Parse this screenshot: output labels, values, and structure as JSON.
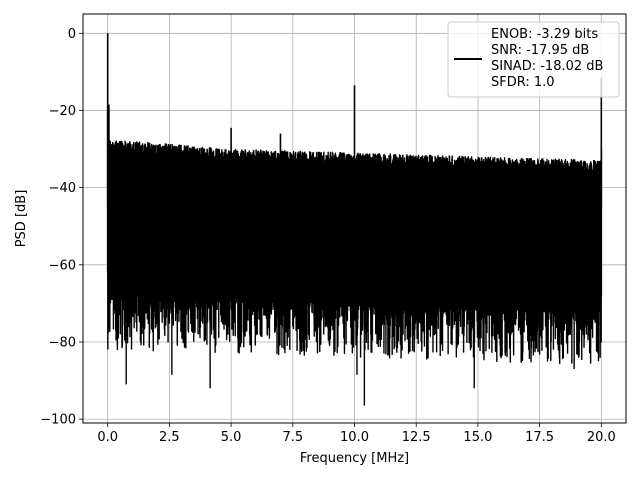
{
  "chart_data": {
    "type": "line",
    "title": "",
    "xlabel": "Frequency [MHz]",
    "ylabel": "PSD [dB]",
    "xlim": [
      -1.0,
      21.0
    ],
    "ylim": [
      -101.0,
      5.0
    ],
    "xticks": [
      0.0,
      2.5,
      5.0,
      7.5,
      10.0,
      12.5,
      15.0,
      17.5,
      20.0
    ],
    "xtick_labels": [
      "0.0",
      "2.5",
      "5.0",
      "7.5",
      "10.0",
      "12.5",
      "15.0",
      "17.5",
      "20.0"
    ],
    "yticks": [
      0,
      -20,
      -40,
      -60,
      -80,
      -100
    ],
    "ytick_labels": [
      "0",
      "−20",
      "−40",
      "−60",
      "−80",
      "−100"
    ],
    "grid": true,
    "legend_position": "top-right",
    "legend_entries": [
      "ENOB: -3.29 bits",
      "SNR: -17.95 dB",
      "SINAD: -18.02 dB",
      "SFDR: 1.0"
    ],
    "series": [
      {
        "name": "ENOB: -3.29 bits\nSNR: -17.95 dB\nSINAD: -18.02 dB\nSFDR: 1.0",
        "color": "#000000",
        "noise_floor_upper_db": [
          -27.5,
          -30.0,
          -31.0,
          -32.0,
          -33.0
        ],
        "noise_floor_lower_db": [
          -68.0,
          -72.0
        ],
        "spurs": [
          {
            "x": 0.0,
            "y": 0.0
          },
          {
            "x": 0.05,
            "y": -18.5
          },
          {
            "x": 5.0,
            "y": -24.5
          },
          {
            "x": 7.0,
            "y": -26.0
          },
          {
            "x": 10.0,
            "y": -13.5
          },
          {
            "x": 20.0,
            "y": -11.5
          }
        ],
        "dips": [
          {
            "x": 0.75,
            "y": -91.0
          },
          {
            "x": 2.6,
            "y": -88.5
          },
          {
            "x": 4.15,
            "y": -92.0
          },
          {
            "x": 10.4,
            "y": -96.5
          },
          {
            "x": 10.1,
            "y": -88.5
          },
          {
            "x": 14.85,
            "y": -92.0
          },
          {
            "x": 18.9,
            "y": -87.0
          }
        ]
      }
    ]
  }
}
